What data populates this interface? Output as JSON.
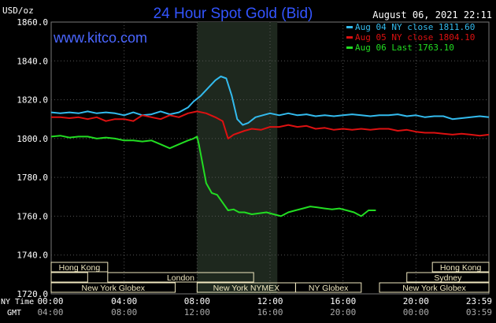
{
  "header": {
    "unit": "USD/oz",
    "title": "24 Hour Spot Gold (Bid)",
    "date": "August 06, 2021 22:11",
    "site": "www.kitco.com"
  },
  "colors": {
    "title": "#3355ff",
    "site": "#4a66ff",
    "aug04": "#33bbee",
    "aug05": "#dd1111",
    "aug06": "#22dd22",
    "session_fill": "#f0e8c0",
    "highlight_band": "#1e281e"
  },
  "chart_data": {
    "type": "line",
    "title": "24 Hour Spot Gold (Bid)",
    "xlabel": "",
    "ylabel": "USD/oz",
    "ylim": [
      1720,
      1860
    ],
    "xlim_hours": [
      0,
      24
    ],
    "yticks": [
      "1860.0",
      "1840.0",
      "1820.0",
      "1800.0",
      "1780.0",
      "1760.0",
      "1740.0",
      "1720.0"
    ],
    "ytick_values": [
      1860,
      1840,
      1820,
      1800,
      1780,
      1760,
      1740,
      1720
    ],
    "highlight_hours": [
      8.0,
      12.4
    ],
    "grid": true,
    "legend": [
      {
        "label": "Aug 04 NY close 1811.60",
        "color_key": "aug04"
      },
      {
        "label": "Aug 05 NY close 1804.10",
        "color_key": "aug05"
      },
      {
        "label": "Aug 06 Last 1763.10",
        "color_key": "aug06"
      }
    ],
    "x_axis": {
      "row1_label": "NY Time",
      "row2_label": "GMT",
      "ticks_hours": [
        0,
        4,
        8,
        12,
        16,
        20,
        24
      ],
      "ny_labels": [
        "00:00",
        "04:00",
        "08:00",
        "12:00",
        "16:00",
        "20:00",
        "23:59"
      ],
      "gmt_labels": [
        "04:00",
        "08:00",
        "12:00",
        "16:00",
        "20:00",
        "00:00",
        "03:59"
      ]
    },
    "sessions": [
      {
        "name": "Hong Kong",
        "start": 0.0,
        "end": 3.1,
        "row": 0
      },
      {
        "name": "Hong Kong",
        "start": 20.9,
        "end": 24.0,
        "row": 0
      },
      {
        "name": "",
        "start": 0.0,
        "end": 2.0,
        "row": 1
      },
      {
        "name": "London",
        "start": 3.1,
        "end": 11.1,
        "row": 1
      },
      {
        "name": "Sydney",
        "start": 19.5,
        "end": 24.0,
        "row": 1
      },
      {
        "name": "New York Globex",
        "start": 0.0,
        "end": 6.8,
        "row": 2
      },
      {
        "name": "New York NYMEX",
        "start": 8.0,
        "end": 13.4,
        "row": 2
      },
      {
        "name": "NY Globex",
        "start": 13.4,
        "end": 17.0,
        "row": 2
      },
      {
        "name": "New York Globex",
        "start": 18.0,
        "end": 24.0,
        "row": 2
      }
    ],
    "series": [
      {
        "name": "Aug 04 NY close 1811.60",
        "color_key": "aug04",
        "x": [
          0,
          0.5,
          1,
          1.5,
          2,
          2.5,
          3,
          3.5,
          4,
          4.5,
          5,
          5.5,
          6,
          6.5,
          7,
          7.5,
          7.8,
          8.2,
          8.6,
          9,
          9.3,
          9.6,
          9.9,
          10.2,
          10.5,
          10.8,
          11.2,
          11.6,
          12,
          12.5,
          13,
          13.5,
          14,
          14.5,
          15,
          15.5,
          16,
          16.5,
          17,
          17.5,
          18,
          18.5,
          19,
          19.5,
          20,
          20.5,
          21,
          21.5,
          22,
          22.5,
          23,
          23.5,
          24
        ],
        "y": [
          1813.5,
          1813,
          1813.5,
          1813,
          1814,
          1813,
          1813.5,
          1813,
          1812,
          1813.5,
          1812,
          1812.5,
          1814,
          1812.5,
          1813.5,
          1816,
          1819,
          1822,
          1826,
          1830,
          1832,
          1831,
          1822,
          1810,
          1807,
          1808,
          1811,
          1812,
          1813,
          1812,
          1813,
          1812,
          1812.5,
          1811.5,
          1812,
          1811.5,
          1812,
          1812.5,
          1812,
          1811.5,
          1812,
          1812,
          1812.5,
          1811.5,
          1812,
          1811,
          1811.5,
          1811.5,
          1810,
          1810.5,
          1811,
          1811.5,
          1811
        ]
      },
      {
        "name": "Aug 05 NY close 1804.10",
        "color_key": "aug05",
        "x": [
          0,
          0.5,
          1,
          1.5,
          2,
          2.5,
          3,
          3.5,
          4,
          4.5,
          5,
          5.5,
          6,
          6.5,
          7,
          7.5,
          8,
          8.5,
          9,
          9.4,
          9.7,
          10,
          10.3,
          10.6,
          11,
          11.5,
          12,
          12.5,
          13,
          13.5,
          14,
          14.5,
          15,
          15.5,
          16,
          16.5,
          17,
          17.5,
          18,
          18.5,
          19,
          19.5,
          20,
          20.5,
          21,
          21.5,
          22,
          22.5,
          23,
          23.5,
          24
        ],
        "y": [
          1811,
          1811,
          1810.5,
          1811,
          1810,
          1811,
          1809,
          1810,
          1810,
          1809,
          1812,
          1811,
          1810,
          1812,
          1811,
          1813,
          1814,
          1813,
          1811,
          1809,
          1800,
          1802,
          1803,
          1804,
          1805,
          1804.5,
          1806,
          1806,
          1807,
          1806,
          1806.5,
          1805,
          1805.5,
          1804.5,
          1805,
          1804.5,
          1805,
          1804.5,
          1805,
          1805,
          1804,
          1804.5,
          1803.5,
          1803,
          1803,
          1802.5,
          1802,
          1802.5,
          1802,
          1801.5,
          1802
        ]
      },
      {
        "name": "Aug 06 Last 1763.10",
        "color_key": "aug06",
        "x": [
          0,
          0.5,
          1,
          1.5,
          2,
          2.5,
          3,
          3.5,
          4,
          4.5,
          5,
          5.5,
          6,
          6.5,
          7,
          7.5,
          7.8,
          8.0,
          8.1,
          8.3,
          8.5,
          8.8,
          9.1,
          9.4,
          9.7,
          10,
          10.3,
          10.6,
          11,
          11.4,
          11.8,
          12.2,
          12.6,
          13,
          13.4,
          13.8,
          14.2,
          14.6,
          15,
          15.4,
          15.8,
          16.2,
          16.6,
          17,
          17.4,
          17.8
        ],
        "y": [
          1801,
          1801.5,
          1800.5,
          1801,
          1801,
          1800,
          1800.5,
          1800,
          1799,
          1799,
          1798.5,
          1799,
          1797,
          1795,
          1797,
          1799,
          1800,
          1801,
          1797,
          1787,
          1777,
          1772,
          1771,
          1767,
          1763,
          1763.5,
          1762,
          1762,
          1761,
          1761.5,
          1762,
          1761,
          1760,
          1762,
          1763,
          1764,
          1765,
          1764.5,
          1764,
          1763.5,
          1764,
          1763,
          1762,
          1760,
          1763,
          1763
        ]
      }
    ]
  }
}
